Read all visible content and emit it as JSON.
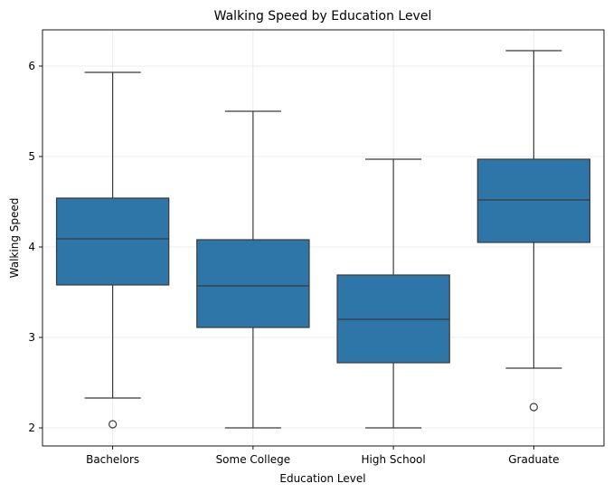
{
  "chart_data": {
    "type": "box",
    "title": "Walking Speed by Education Level",
    "xlabel": "Education Level",
    "ylabel": "Walking Speed",
    "ylim": [
      1.8,
      6.4
    ],
    "yticks": [
      2,
      3,
      4,
      5,
      6
    ],
    "grid": true,
    "box_color": "#2e75a8",
    "categories": [
      "Bachelors",
      "Some College",
      "High School",
      "Graduate"
    ],
    "boxes": [
      {
        "category": "Bachelors",
        "whisker_low": 2.33,
        "q1": 3.58,
        "median": 4.09,
        "q3": 4.54,
        "whisker_high": 5.93,
        "outliers": [
          2.04
        ]
      },
      {
        "category": "Some College",
        "whisker_low": 2.0,
        "q1": 3.11,
        "median": 3.57,
        "q3": 4.08,
        "whisker_high": 5.5,
        "outliers": []
      },
      {
        "category": "High School",
        "whisker_low": 2.0,
        "q1": 2.72,
        "median": 3.2,
        "q3": 3.69,
        "whisker_high": 4.97,
        "outliers": []
      },
      {
        "category": "Graduate",
        "whisker_low": 2.66,
        "q1": 4.05,
        "median": 4.52,
        "q3": 4.97,
        "whisker_high": 6.17,
        "outliers": [
          2.23
        ]
      }
    ]
  }
}
